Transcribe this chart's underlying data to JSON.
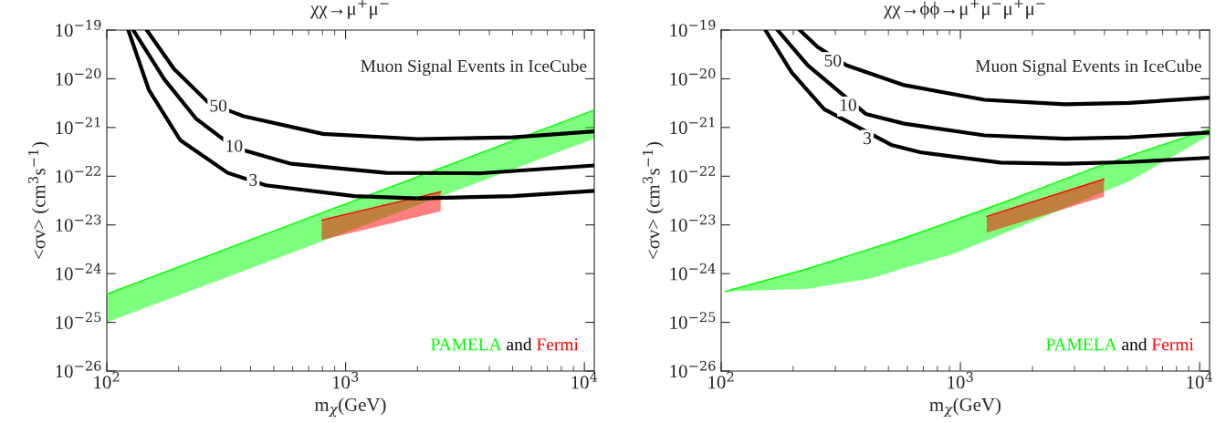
{
  "chart_data": [
    {
      "type": "line",
      "title": "χχ→μ$^{+}$μ$^{−}$",
      "xlabel": "m$_{χ}$(GeV)",
      "ylabel": "<σv> (cm$^{3}$s$^{−1}$)",
      "log": "xy",
      "legend": "bottom right",
      "grid": false,
      "xlim": [
        100,
        11000
      ],
      "ylim": [
        1e-26,
        1e-19
      ],
      "xticks": [
        {
          "value": 100,
          "label": "10$^{2}$"
        },
        {
          "value": 1000,
          "label": "10$^{3}$"
        },
        {
          "value": 10000,
          "label": "10$^{4}$"
        }
      ],
      "yticks": [
        {
          "value": 1e-26,
          "label": "10$^{−26}$"
        },
        {
          "value": 1e-25,
          "label": "10$^{−25}$"
        },
        {
          "value": 1e-24,
          "label": "10$^{−24}$"
        },
        {
          "value": 1e-23,
          "label": "10$^{−23}$"
        },
        {
          "value": 1e-22,
          "label": "10$^{−22}$"
        },
        {
          "value": 1e-21,
          "label": "10$^{−21}$"
        },
        {
          "value": 1e-20,
          "label": "10$^{−20}$"
        },
        {
          "value": 1e-19,
          "label": "10$^{−19}$"
        }
      ],
      "series": [
        {
          "name": "PAMELA",
          "color": "#00ff00",
          "x": [
            100,
            11000
          ],
          "lower": [
            1e-25,
            5.9e-22
          ],
          "upper": [
            3.8e-25,
            2.3e-21
          ],
          "values": [
            3.8e-25,
            2.3e-21
          ]
        },
        {
          "name": "Fermi",
          "color": "#ff0000",
          "x": [
            795,
            2500
          ],
          "lower": [
            4.9e-24,
            1.9e-23
          ],
          "upper": [
            1.26e-23,
            4.8e-23
          ],
          "values": [
            1.26e-23,
            4.8e-23
          ]
        },
        {
          "color": "#000000",
          "x": [
            147,
            191,
            267,
            374,
            804,
            2005,
            5012,
            11000
          ],
          "values": [
            1e-19,
            1.6e-20,
            3.2e-21,
            1.7e-21,
            7.4e-22,
            5.8e-22,
            6.3e-22,
            8.3e-22
          ]
        },
        {
          "color": "#000000",
          "x": [
            129,
            174,
            237,
            341,
            592,
            1479,
            3698,
            11000
          ],
          "values": [
            1e-19,
            9.8e-21,
            1.5e-21,
            3.9e-22,
            1.8e-22,
            1.17e-22,
            1.15e-22,
            1.66e-22
          ]
        },
        {
          "color": "#000000",
          "x": [
            123,
            150,
            203,
            321,
            463,
            1089,
            2005,
            5012,
            11000
          ],
          "values": [
            1e-19,
            5.9e-21,
            5.5e-22,
            1.17e-22,
            6.5e-23,
            3.9e-23,
            3.5e-23,
            3.9e-23,
            5e-23
          ]
        }
      ],
      "annotations": [
        "Muon Signal Events in IceCube",
        "and",
        {
          "text": "50",
          "x": 293,
          "y": 2.6e-21
        },
        {
          "text": "10",
          "x": 341,
          "y": 3.9e-22
        },
        {
          "text": "3",
          "x": 410,
          "y": 7.8e-23
        }
      ]
    },
    {
      "type": "line",
      "title": "χχ→ϕϕ→μ$^{+}$μ$^{−}$μ$^{+}$μ$^{−}$",
      "xlabel": "m$_{χ}$(GeV)",
      "ylabel": "<σv> (cm$^{3}$s$^{−1}$)",
      "log": "xy",
      "legend": "bottom right",
      "grid": false,
      "xlim": [
        100,
        11000
      ],
      "ylim": [
        1e-26,
        1e-19
      ],
      "xticks": [
        {
          "value": 100,
          "label": "10$^{2}$"
        },
        {
          "value": 1000,
          "label": "10$^{3}$"
        },
        {
          "value": 10000,
          "label": "10$^{4}$"
        }
      ],
      "yticks": [
        {
          "value": 1e-26,
          "label": "10$^{−26}$"
        },
        {
          "value": 1e-25,
          "label": "10$^{−25}$"
        },
        {
          "value": 1e-24,
          "label": "10$^{−24}$"
        },
        {
          "value": 1e-23,
          "label": "10$^{−23}$"
        },
        {
          "value": 1e-22,
          "label": "10$^{−22}$"
        },
        {
          "value": 1e-21,
          "label": "10$^{−21}$"
        },
        {
          "value": 1e-20,
          "label": "10$^{−20}$"
        },
        {
          "value": 1e-19,
          "label": "10$^{−19}$"
        }
      ],
      "series": [
        {
          "name": "PAMELA",
          "color": "#00ff00",
          "x": [
            104,
            230,
            427,
            582,
            925,
            1472,
            2005,
            3715,
            5070,
            11000
          ],
          "lower": [
            4.3e-25,
            4.9e-25,
            8.1e-25,
            1.3e-24,
            2.5e-24,
            6.3e-24,
            1.17e-23,
            4.2e-23,
            7.8e-23,
            6.9e-22
          ],
          "upper": [
            4.3e-25,
            1.26e-24,
            3.3e-24,
            5.4e-24,
            1.2e-23,
            2.75e-23,
            4.9e-23,
            1.55e-22,
            2.6e-22,
            9.3e-22
          ],
          "values": [
            4.3e-25,
            1.26e-24,
            3.3e-24,
            5.4e-24,
            1.2e-23,
            2.75e-23,
            4.9e-23,
            1.55e-22,
            2.6e-22,
            9.3e-22
          ]
        },
        {
          "name": "Fermi",
          "color": "#ff0000",
          "x": [
            1288,
            3981
          ],
          "lower": [
            6.9e-24,
            3.8e-23
          ],
          "upper": [
            1.5e-23,
            8.7e-23
          ],
          "values": [
            1.5e-23,
            8.7e-23
          ]
        },
        {
          "color": "#000000",
          "x": [
            213,
            253,
            333,
            582,
            1262,
            2729,
            5070,
            11000
          ],
          "values": [
            1e-19,
            4.5e-20,
            1.9e-20,
            7.4e-21,
            3.7e-21,
            3e-21,
            3.2e-21,
            4.1e-21
          ]
        },
        {
          "color": "#000000",
          "x": [
            172,
            230,
            402,
            582,
            1262,
            2729,
            5070,
            11000
          ],
          "values": [
            1e-19,
            1.9e-20,
            1.9e-21,
            1.2e-21,
            6.9e-22,
            5.9e-22,
            6.3e-22,
            7.9e-22
          ]
        },
        {
          "color": "#000000",
          "x": [
            153,
            197,
            269,
            514,
            679,
            1472,
            2729,
            5070,
            11000
          ],
          "values": [
            1e-19,
            1.35e-20,
            2.4e-21,
            4.4e-22,
            3.1e-22,
            1.9e-22,
            1.8e-22,
            1.95e-22,
            2.4e-22
          ]
        }
      ],
      "annotations": [
        "Muon Signal Events in IceCube",
        "and",
        {
          "text": "50",
          "x": 293,
          "y": 2.2e-20
        },
        {
          "text": "10",
          "x": 339,
          "y": 2.7e-21
        },
        {
          "text": "3",
          "x": 408,
          "y": 5.6e-22
        }
      ]
    }
  ]
}
